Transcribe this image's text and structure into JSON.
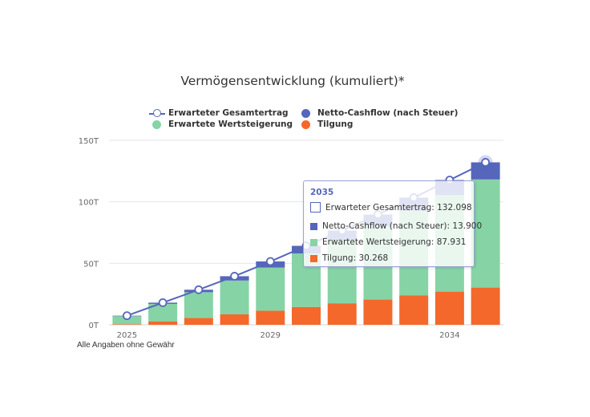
{
  "chart_data": {
    "type": "bar",
    "title": "Vermögensentwicklung (kumuliert)*",
    "categories": [
      2025,
      2026,
      2027,
      2028,
      2029,
      2030,
      2031,
      2032,
      2033,
      2034,
      2035
    ],
    "x_tick_labels": [
      {
        "category": 2025,
        "label": "2025"
      },
      {
        "category": 2029,
        "label": "2029"
      },
      {
        "category": 2034,
        "label": "2034"
      }
    ],
    "y_tick_labels": [
      {
        "value": 0,
        "label": "0T"
      },
      {
        "value": 50000,
        "label": "50T"
      },
      {
        "value": 100000,
        "label": "100T"
      },
      {
        "value": 150000,
        "label": "150T"
      }
    ],
    "ylim": [
      0,
      150000
    ],
    "grid": true,
    "stacked": true,
    "series": [
      {
        "name": "Tilgung",
        "kind": "bar",
        "color": "#f4682c",
        "values": [
          500,
          2800,
          5500,
          8500,
          11500,
          14500,
          17500,
          20500,
          23800,
          27000,
          30268
        ]
      },
      {
        "name": "Erwartete Wertsteigerung",
        "kind": "bar",
        "color": "#86d3a6",
        "values": [
          6500,
          14200,
          21000,
          27500,
          35000,
          43500,
          51500,
          60000,
          69000,
          78500,
          87931
        ]
      },
      {
        "name": "Netto-Cashflow (nach Steuer)",
        "kind": "bar",
        "color": "#5566bb",
        "values": [
          400,
          1000,
          2000,
          3500,
          5000,
          6200,
          7600,
          9100,
          10600,
          12200,
          13900
        ]
      },
      {
        "name": "Erwarteter Gesamtertrag",
        "kind": "line",
        "color": "#5566bb",
        "values": [
          7400,
          18000,
          28500,
          39500,
          51500,
          64200,
          76600,
          89600,
          103400,
          117700,
          132098
        ]
      }
    ],
    "highlight_index": 10,
    "footnote": "Alle Angaben ohne Gewähr"
  },
  "legend": {
    "items": [
      {
        "label": "Erwarteter Gesamtertrag",
        "marker": "line-dot",
        "color": "#5566bb"
      },
      {
        "label": "Netto-Cashflow (nach Steuer)",
        "marker": "dot",
        "color": "#5566bb"
      },
      {
        "label": "Erwartete Wertsteigerung",
        "marker": "dot",
        "color": "#86d3a6"
      },
      {
        "label": "Tilgung",
        "marker": "dot",
        "color": "#f4682c"
      }
    ]
  },
  "tooltip": {
    "header": "2035",
    "rows": [
      {
        "marker": "hollow-square",
        "color": "#5566bb",
        "text": "Erwarteter Gesamtertrag: 132.098"
      },
      {
        "marker": "square",
        "color": "#5566bb",
        "text": "Netto-Cashflow (nach Steuer): 13.900"
      },
      {
        "marker": "square",
        "color": "#86d3a6",
        "text": "Erwartete Wertsteigerung: 87.931"
      },
      {
        "marker": "square",
        "color": "#f4682c",
        "text": "Tilgung: 30.268"
      }
    ]
  }
}
